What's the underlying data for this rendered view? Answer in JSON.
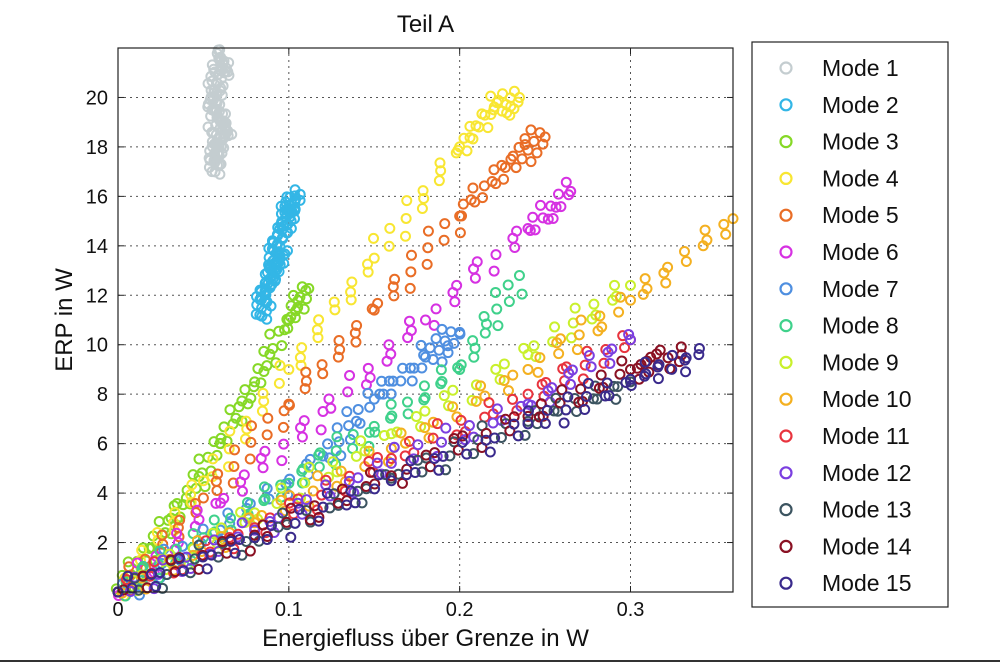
{
  "chart_data": {
    "type": "scatter",
    "title": "Teil A",
    "xlabel": "Energiefluss über Grenze in W",
    "ylabel": "ERP in W",
    "xlim": [
      0,
      0.36
    ],
    "ylim": [
      0,
      22
    ],
    "xticks": [
      0,
      0.1,
      0.2,
      0.3
    ],
    "xtick_labels": [
      "0",
      "0.1",
      "0.2",
      "0.3"
    ],
    "yticks": [
      2,
      4,
      6,
      8,
      10,
      12,
      14,
      16,
      18,
      20
    ],
    "ytick_labels": [
      "2",
      "4",
      "6",
      "8",
      "10",
      "12",
      "14",
      "16",
      "18",
      "20"
    ],
    "grid": true,
    "legend_position": "right-outside",
    "marker": "open-circle",
    "series": [
      {
        "name": "Mode 1",
        "color": "#c4cdd0",
        "points": [
          [
            0.055,
            17.0
          ],
          [
            0.058,
            18.0
          ],
          [
            0.06,
            19.0
          ],
          [
            0.056,
            20.0
          ],
          [
            0.062,
            21.0
          ],
          [
            0.059,
            21.6
          ],
          [
            0.055,
            19.5
          ],
          [
            0.063,
            18.5
          ],
          [
            0.057,
            17.5
          ]
        ]
      },
      {
        "name": "Mode 2",
        "color": "#33b6e6",
        "points": [
          [
            0.083,
            11.2
          ],
          [
            0.086,
            12.0
          ],
          [
            0.09,
            13.0
          ],
          [
            0.093,
            14.0
          ],
          [
            0.097,
            14.8
          ],
          [
            0.1,
            15.5
          ],
          [
            0.104,
            15.9
          ],
          [
            0.088,
            12.5
          ],
          [
            0.095,
            13.5
          ]
        ]
      },
      {
        "name": "Mode 3",
        "color": "#86d826",
        "points": [
          [
            0.0,
            0.0
          ],
          [
            0.02,
            1.8
          ],
          [
            0.04,
            3.8
          ],
          [
            0.06,
            6.0
          ],
          [
            0.08,
            8.5
          ],
          [
            0.1,
            11.0
          ],
          [
            0.11,
            12.2
          ]
        ]
      },
      {
        "name": "Mode 4",
        "color": "#f8e632",
        "points": [
          [
            0.0,
            0.0
          ],
          [
            0.05,
            4.5
          ],
          [
            0.1,
            9.0
          ],
          [
            0.15,
            13.5
          ],
          [
            0.2,
            18.0
          ],
          [
            0.22,
            19.5
          ],
          [
            0.235,
            20.0
          ]
        ]
      },
      {
        "name": "Mode 5",
        "color": "#e96d26",
        "points": [
          [
            0.0,
            0.0
          ],
          [
            0.05,
            3.8
          ],
          [
            0.1,
            7.6
          ],
          [
            0.15,
            11.4
          ],
          [
            0.2,
            15.2
          ],
          [
            0.23,
            17.5
          ],
          [
            0.25,
            18.4
          ]
        ]
      },
      {
        "name": "Mode 6",
        "color": "#d631e2",
        "points": [
          [
            0.0,
            0.0
          ],
          [
            0.06,
            3.6
          ],
          [
            0.12,
            7.3
          ],
          [
            0.18,
            11.0
          ],
          [
            0.24,
            14.7
          ],
          [
            0.265,
            16.2
          ]
        ]
      },
      {
        "name": "Mode 7",
        "color": "#4f8fe0",
        "points": [
          [
            0.0,
            0.0
          ],
          [
            0.06,
            2.5
          ],
          [
            0.12,
            5.5
          ],
          [
            0.15,
            7.8
          ],
          [
            0.18,
            9.5
          ],
          [
            0.2,
            10.5
          ]
        ]
      },
      {
        "name": "Mode 8",
        "color": "#3fd18b",
        "points": [
          [
            0.0,
            0.0
          ],
          [
            0.05,
            2.2
          ],
          [
            0.1,
            4.4
          ],
          [
            0.15,
            6.7
          ],
          [
            0.2,
            9.0
          ],
          [
            0.235,
            12.8
          ]
        ]
      },
      {
        "name": "Mode 9",
        "color": "#c9f02c",
        "points": [
          [
            0.0,
            0.0
          ],
          [
            0.08,
            3.2
          ],
          [
            0.16,
            6.4
          ],
          [
            0.24,
            9.6
          ],
          [
            0.3,
            12.4
          ]
        ]
      },
      {
        "name": "Mode 10",
        "color": "#f4b020",
        "points": [
          [
            0.0,
            0.0
          ],
          [
            0.08,
            2.8
          ],
          [
            0.16,
            5.8
          ],
          [
            0.24,
            9.0
          ],
          [
            0.3,
            11.8
          ],
          [
            0.36,
            15.1
          ]
        ]
      },
      {
        "name": "Mode 11",
        "color": "#e8343e",
        "points": [
          [
            0.0,
            0.0
          ],
          [
            0.08,
            2.6
          ],
          [
            0.16,
            5.4
          ],
          [
            0.24,
            8.0
          ],
          [
            0.3,
            10.2
          ]
        ]
      },
      {
        "name": "Mode 12",
        "color": "#7b3fe0",
        "points": [
          [
            0.0,
            0.0
          ],
          [
            0.08,
            2.5
          ],
          [
            0.16,
            5.2
          ],
          [
            0.24,
            7.6
          ],
          [
            0.3,
            10.2
          ]
        ]
      },
      {
        "name": "Mode 13",
        "color": "#3c5460",
        "points": [
          [
            0.0,
            0.0
          ],
          [
            0.08,
            2.2
          ],
          [
            0.16,
            4.6
          ],
          [
            0.24,
            6.9
          ],
          [
            0.3,
            8.5
          ]
        ]
      },
      {
        "name": "Mode 14",
        "color": "#8a1123",
        "points": [
          [
            0.0,
            0.0
          ],
          [
            0.08,
            2.3
          ],
          [
            0.16,
            4.7
          ],
          [
            0.24,
            7.1
          ],
          [
            0.3,
            9.0
          ],
          [
            0.33,
            9.6
          ]
        ]
      },
      {
        "name": "Mode 15",
        "color": "#3a2a8c",
        "points": [
          [
            0.0,
            0.0
          ],
          [
            0.08,
            2.2
          ],
          [
            0.16,
            4.5
          ],
          [
            0.24,
            6.8
          ],
          [
            0.3,
            8.6
          ],
          [
            0.34,
            9.6
          ]
        ]
      }
    ]
  }
}
